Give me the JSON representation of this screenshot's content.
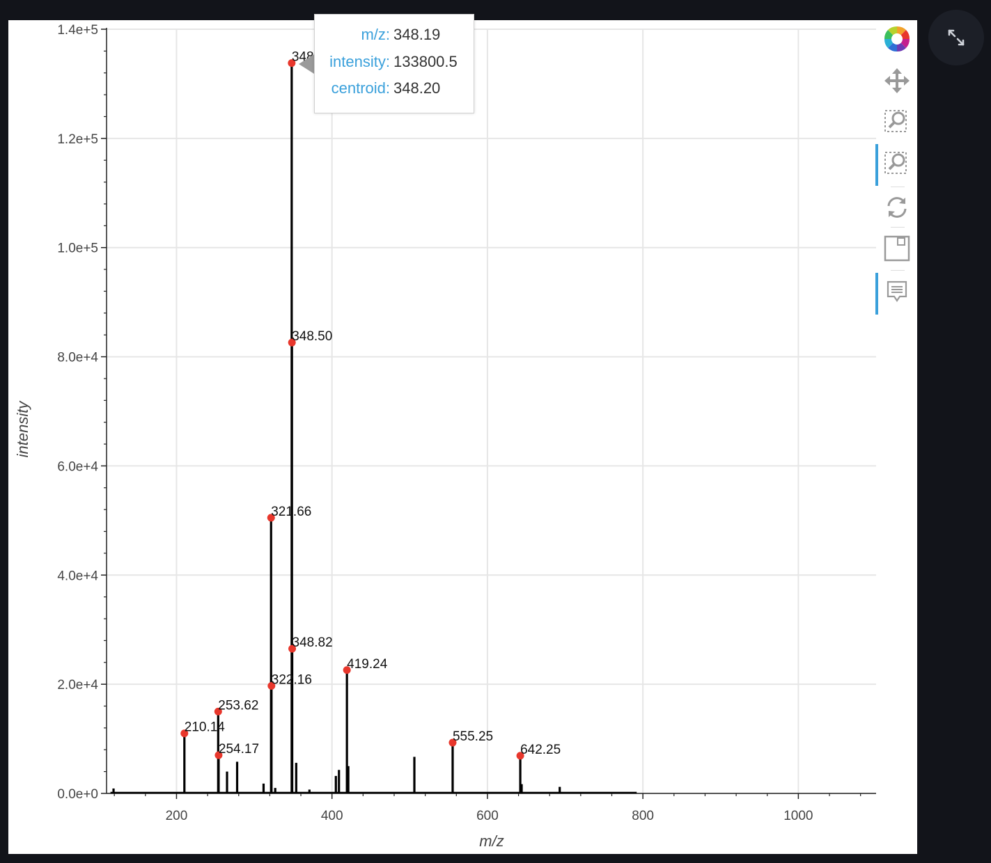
{
  "chart_data": {
    "type": "line",
    "xlabel": "m/z",
    "ylabel": "intensity",
    "xlim": [
      110,
      1100
    ],
    "ylim": [
      0,
      140000
    ],
    "x_ticks": [
      200,
      400,
      600,
      800,
      1000
    ],
    "x_tick_labels": [
      "200",
      "400",
      "600",
      "800",
      "1000"
    ],
    "y_ticks": [
      0,
      20000,
      40000,
      60000,
      80000,
      100000,
      120000,
      140000
    ],
    "y_tick_labels": [
      "0.0e+0",
      "2.0e+4",
      "4.0e+4",
      "6.0e+4",
      "8.0e+4",
      "1.0e+5",
      "1.2e+5",
      "1.4e+5"
    ],
    "grid": true,
    "series": [
      {
        "sticks": [
          {
            "x": 119,
            "y": 900
          },
          {
            "x": 210.14,
            "y": 11000
          },
          {
            "x": 253.62,
            "y": 15000
          },
          {
            "x": 254.17,
            "y": 7000
          },
          {
            "x": 265,
            "y": 4000
          },
          {
            "x": 278,
            "y": 5800
          },
          {
            "x": 312,
            "y": 1800
          },
          {
            "x": 321.66,
            "y": 50500
          },
          {
            "x": 322.16,
            "y": 19700
          },
          {
            "x": 327,
            "y": 1000
          },
          {
            "x": 348.19,
            "y": 133800
          },
          {
            "x": 348.5,
            "y": 82600
          },
          {
            "x": 348.82,
            "y": 26500
          },
          {
            "x": 354,
            "y": 5600
          },
          {
            "x": 371,
            "y": 700
          },
          {
            "x": 405,
            "y": 3200
          },
          {
            "x": 409,
            "y": 4300
          },
          {
            "x": 419.24,
            "y": 22600
          },
          {
            "x": 421,
            "y": 5000
          },
          {
            "x": 506,
            "y": 6700
          },
          {
            "x": 555.25,
            "y": 9300
          },
          {
            "x": 642.25,
            "y": 6900
          },
          {
            "x": 644,
            "y": 1700
          },
          {
            "x": 693,
            "y": 1200
          }
        ],
        "baseline_range": [
          115,
          792
        ]
      }
    ],
    "peaks": [
      {
        "x": 348.19,
        "y": 133800,
        "label": "348.19"
      },
      {
        "x": 348.5,
        "y": 82600,
        "label": "348.50"
      },
      {
        "x": 321.66,
        "y": 50500,
        "label": "321.66"
      },
      {
        "x": 348.82,
        "y": 26500,
        "label": "348.82"
      },
      {
        "x": 419.24,
        "y": 22600,
        "label": "419.24"
      },
      {
        "x": 322.16,
        "y": 19700,
        "label": "322.16"
      },
      {
        "x": 253.62,
        "y": 15000,
        "label": "253.62"
      },
      {
        "x": 210.14,
        "y": 11000,
        "label": "210.14"
      },
      {
        "x": 555.25,
        "y": 9300,
        "label": "555.25"
      },
      {
        "x": 254.17,
        "y": 7000,
        "label": "254.17"
      },
      {
        "x": 642.25,
        "y": 6900,
        "label": "642.25"
      }
    ],
    "colors": {
      "line": "#000000",
      "marker": "#e8372c",
      "grid": "#e6e6e6"
    }
  },
  "tooltip": {
    "rows": [
      {
        "key": "m/z:",
        "value": "348.19"
      },
      {
        "key": "intensity:",
        "value": "133800.5"
      },
      {
        "key": "centroid:",
        "value": "348.20"
      }
    ]
  },
  "toolbar": {
    "tools": [
      {
        "name": "bokeh-logo-icon",
        "active": false
      },
      {
        "name": "pan-icon",
        "active": false
      },
      {
        "name": "box-zoom-icon",
        "active": false
      },
      {
        "name": "wheel-zoom-icon",
        "active": true
      },
      {
        "name": "reset-icon",
        "active": false
      },
      {
        "name": "save-icon",
        "active": false
      },
      {
        "name": "hover-icon",
        "active": true
      }
    ]
  },
  "fullscreen": {
    "icon": "expand-icon"
  }
}
